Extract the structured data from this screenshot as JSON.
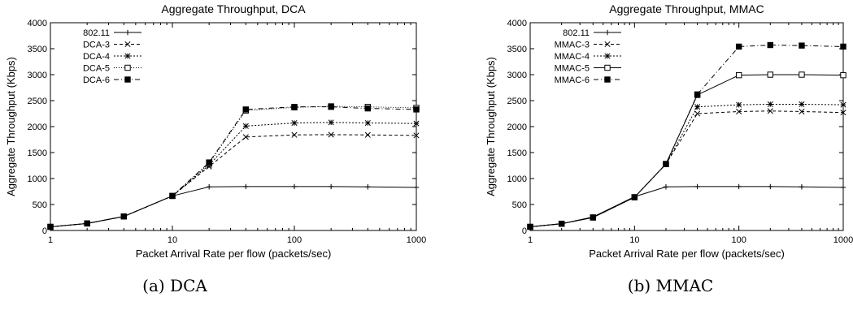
{
  "chart_data": [
    {
      "type": "line",
      "title": "Aggregate Throughput, DCA",
      "xlabel": "Packet Arrival Rate per flow (packets/sec)",
      "ylabel": "Aggregate Throughput (Kbps)",
      "xscale": "log",
      "xlim": [
        1,
        1000
      ],
      "ylim": [
        0,
        4000
      ],
      "xticks": [
        1,
        10,
        100,
        1000
      ],
      "yticks": [
        0,
        500,
        1000,
        1500,
        2000,
        2500,
        3000,
        3500,
        4000
      ],
      "x": [
        1,
        2,
        4,
        10,
        20,
        40,
        100,
        200,
        400,
        1000
      ],
      "legend_position": "top-left",
      "series": [
        {
          "name": "802.11",
          "marker": "plus",
          "dash": "solid",
          "values": [
            70,
            135,
            270,
            665,
            840,
            845,
            845,
            845,
            840,
            830
          ]
        },
        {
          "name": "DCA-3",
          "marker": "x",
          "dash": "dashed",
          "values": [
            70,
            135,
            270,
            665,
            1230,
            1800,
            1840,
            1845,
            1840,
            1830
          ]
        },
        {
          "name": "DCA-4",
          "marker": "star",
          "dash": "dotted",
          "values": [
            70,
            135,
            270,
            665,
            1260,
            2010,
            2070,
            2080,
            2070,
            2060
          ]
        },
        {
          "name": "DCA-5",
          "marker": "open-square",
          "dash": "fine-dotted",
          "values": [
            70,
            135,
            270,
            665,
            1290,
            2310,
            2370,
            2390,
            2380,
            2360
          ]
        },
        {
          "name": "DCA-6",
          "marker": "filled-square",
          "dash": "dash-dot",
          "values": [
            70,
            135,
            270,
            665,
            1310,
            2330,
            2380,
            2380,
            2350,
            2330
          ]
        }
      ]
    },
    {
      "type": "line",
      "title": "Aggregate Throughput, MMAC",
      "xlabel": "Packet Arrival Rate per flow (packets/sec)",
      "ylabel": "Aggregate Throughput (Kbps)",
      "xscale": "log",
      "xlim": [
        1,
        1000
      ],
      "ylim": [
        0,
        4000
      ],
      "xticks": [
        1,
        10,
        100,
        1000
      ],
      "yticks": [
        0,
        500,
        1000,
        1500,
        2000,
        2500,
        3000,
        3500,
        4000
      ],
      "x": [
        1,
        2,
        4,
        10,
        20,
        40,
        100,
        200,
        400,
        1000
      ],
      "legend_position": "top-left",
      "series": [
        {
          "name": "802.11",
          "marker": "plus",
          "dash": "solid",
          "values": [
            70,
            130,
            260,
            650,
            840,
            845,
            845,
            845,
            840,
            830
          ]
        },
        {
          "name": "MMAC-3",
          "marker": "x",
          "dash": "dashed",
          "values": [
            70,
            130,
            250,
            640,
            1280,
            2250,
            2290,
            2300,
            2290,
            2270
          ]
        },
        {
          "name": "MMAC-4",
          "marker": "star",
          "dash": "dotted",
          "values": [
            70,
            130,
            250,
            640,
            1280,
            2380,
            2420,
            2430,
            2430,
            2420
          ]
        },
        {
          "name": "MMAC-5",
          "marker": "open-square",
          "dash": "solid-thin",
          "values": [
            70,
            130,
            250,
            640,
            1280,
            2610,
            2990,
            3000,
            3000,
            2990
          ]
        },
        {
          "name": "MMAC-6",
          "marker": "filled-square",
          "dash": "dash-dot",
          "values": [
            70,
            130,
            250,
            640,
            1280,
            2620,
            3540,
            3570,
            3560,
            3540
          ]
        }
      ]
    }
  ],
  "captions": {
    "a": "(a) DCA",
    "b": "(b) MMAC"
  }
}
